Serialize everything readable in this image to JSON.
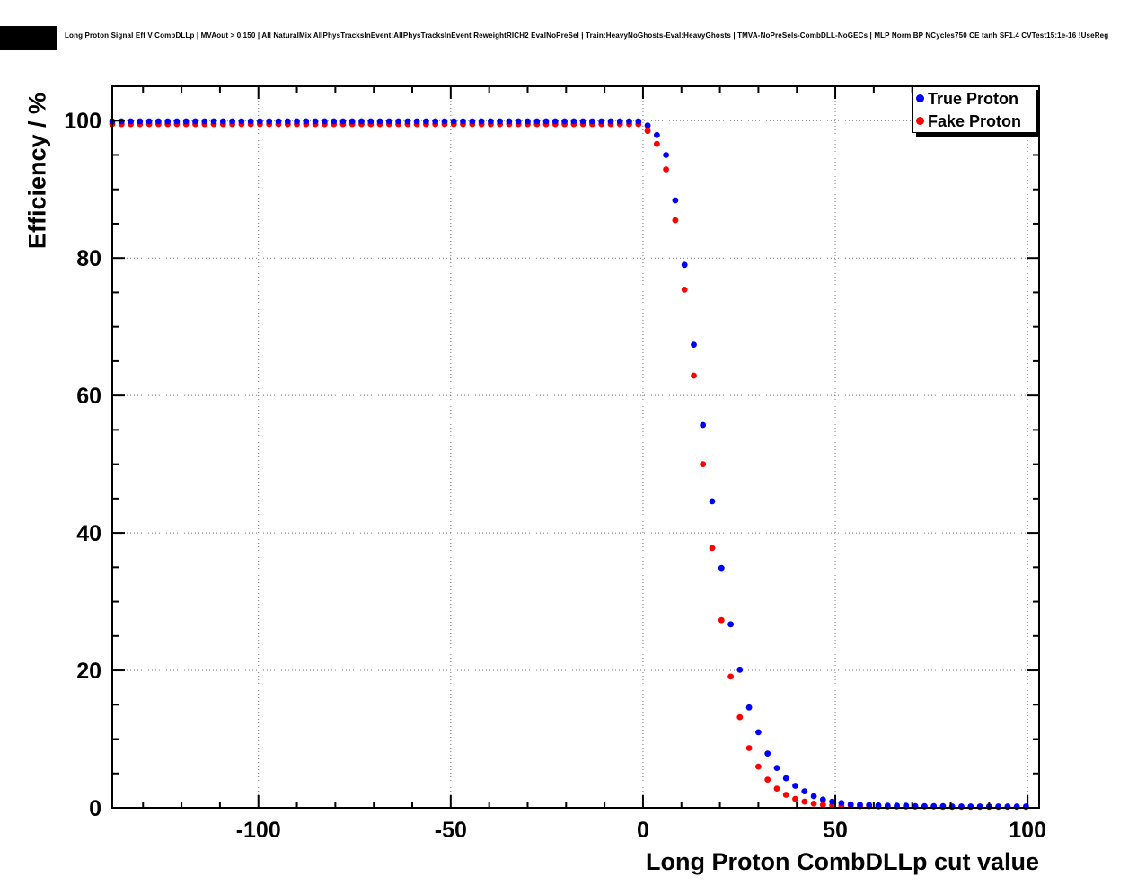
{
  "title": "Long Proton Signal Eff V CombDLLp | MVAout > 0.150 | All NaturalMix AllPhysTracksInEvent:AllPhysTracksInEvent ReweightRICH2 EvalNoPreSel | Train:HeavyNoGhosts-Eval:HeavyGhosts | TMVA-NoPreSels-CombDLL-NoGECs | MLP Norm BP NCycles750 CE tanh SF1.4 CVTest15:1e-16 !UseReg",
  "colors": {
    "true_proton": "#0000ff",
    "fake_proton": "#ff0000",
    "grid": "#777777",
    "frame": "#000000",
    "background": "#ffffff"
  },
  "chart_data": {
    "type": "scatter",
    "title": "Long Proton Signal Eff V CombDLLp",
    "xlabel": "Long Proton CombDLLp cut value",
    "ylabel": "Efficiency / %",
    "xlim": [
      -138,
      103
    ],
    "ylim": [
      0,
      105
    ],
    "xticks": [
      -100,
      -50,
      0,
      50,
      100
    ],
    "yticks": [
      0,
      20,
      40,
      60,
      80,
      100
    ],
    "x_minor_step": 10,
    "y_minor_step": 5,
    "grid": true,
    "legend_position": "top-right",
    "marker_radius": 3.4,
    "x": [
      -138,
      -135.6,
      -133.2,
      -130.8,
      -128.4,
      -126,
      -123.6,
      -121.2,
      -118.8,
      -116.4,
      -114,
      -111.6,
      -109.2,
      -106.8,
      -104.4,
      -102,
      -99.6,
      -97.2,
      -94.8,
      -92.4,
      -90,
      -87.6,
      -85.2,
      -82.8,
      -80.4,
      -78,
      -75.6,
      -73.2,
      -70.8,
      -68.4,
      -66,
      -63.6,
      -61.2,
      -58.8,
      -56.4,
      -54,
      -51.6,
      -49.2,
      -46.8,
      -44.4,
      -42,
      -39.6,
      -37.2,
      -34.8,
      -32.4,
      -30,
      -27.6,
      -25.2,
      -22.8,
      -20.4,
      -18,
      -15.6,
      -13.2,
      -10.8,
      -8.4,
      -6,
      -3.6,
      -1.2,
      1.2,
      3.6,
      6,
      8.4,
      10.8,
      13.2,
      15.6,
      18,
      20.4,
      22.8,
      25.2,
      27.6,
      30,
      32.4,
      34.8,
      37.2,
      39.6,
      42,
      44.4,
      46.8,
      49.2,
      51.6,
      54,
      56.4,
      58.8,
      61.2,
      63.6,
      66,
      68.4,
      70.8,
      73.2,
      75.6,
      78,
      80.4,
      82.8,
      85.2,
      87.6,
      90,
      92.4,
      94.8,
      97.2,
      99.6
    ],
    "series": [
      {
        "name": "True Proton",
        "color": "#0000ff",
        "values": [
          99.9,
          99.9,
          99.9,
          99.9,
          99.9,
          99.9,
          99.9,
          99.9,
          99.9,
          99.9,
          99.9,
          99.9,
          99.9,
          99.9,
          99.9,
          99.9,
          99.9,
          99.9,
          99.9,
          99.9,
          99.9,
          99.9,
          99.9,
          99.9,
          99.9,
          99.9,
          99.9,
          99.9,
          99.9,
          99.9,
          99.9,
          99.9,
          99.9,
          99.9,
          99.9,
          99.9,
          99.9,
          99.9,
          99.9,
          99.9,
          99.9,
          99.9,
          99.9,
          99.9,
          99.9,
          99.9,
          99.9,
          99.9,
          99.9,
          99.9,
          99.9,
          99.9,
          99.9,
          99.9,
          99.9,
          99.9,
          99.9,
          99.9,
          99.3,
          97.9,
          95.0,
          88.4,
          79.0,
          67.4,
          55.7,
          44.6,
          34.9,
          26.7,
          20.1,
          14.6,
          11.0,
          7.9,
          5.8,
          4.3,
          3.2,
          2.4,
          1.7,
          1.2,
          0.9,
          0.7,
          0.5,
          0.45,
          0.4,
          0.35,
          0.3,
          0.3,
          0.3,
          0.25,
          0.25,
          0.25,
          0.25,
          0.2,
          0.2,
          0.2,
          0.2,
          0.2,
          0.2,
          0.2,
          0.2,
          0.2
        ]
      },
      {
        "name": "Fake Proton",
        "color": "#ff0000",
        "values": [
          99.5,
          99.5,
          99.5,
          99.5,
          99.5,
          99.5,
          99.5,
          99.5,
          99.5,
          99.5,
          99.5,
          99.5,
          99.5,
          99.5,
          99.5,
          99.5,
          99.5,
          99.5,
          99.5,
          99.5,
          99.5,
          99.5,
          99.5,
          99.5,
          99.5,
          99.5,
          99.5,
          99.5,
          99.5,
          99.5,
          99.5,
          99.5,
          99.5,
          99.5,
          99.5,
          99.5,
          99.5,
          99.5,
          99.5,
          99.5,
          99.5,
          99.5,
          99.5,
          99.5,
          99.5,
          99.5,
          99.5,
          99.5,
          99.5,
          99.5,
          99.5,
          99.5,
          99.5,
          99.5,
          99.5,
          99.5,
          99.5,
          99.5,
          98.5,
          96.6,
          92.9,
          85.5,
          75.4,
          62.9,
          50.0,
          37.8,
          27.3,
          19.1,
          13.2,
          8.7,
          6.0,
          4.1,
          2.8,
          1.9,
          1.3,
          0.9,
          0.6,
          0.45,
          0.35,
          0.3,
          0.3,
          0.25,
          0.25,
          0.2,
          0.2,
          0.2,
          0.2,
          0.2,
          0.2,
          0.2,
          0.15,
          0.15,
          0.15,
          0.15,
          0.15,
          0.15,
          0.15,
          0.15,
          0.15,
          0.15
        ]
      }
    ]
  }
}
